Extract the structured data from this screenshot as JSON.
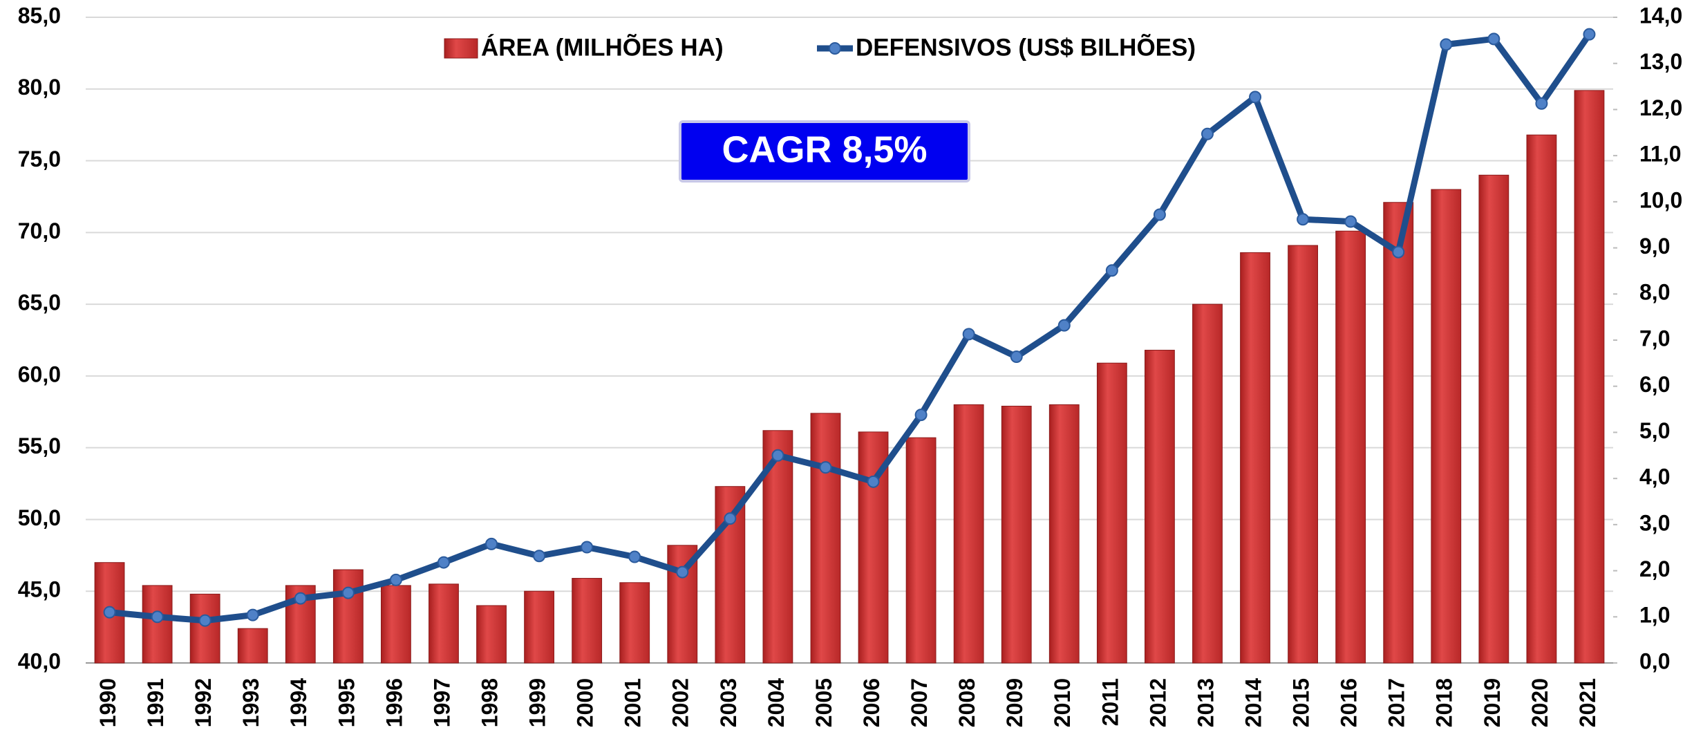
{
  "chart_data": {
    "type": "bar-line",
    "categories": [
      "1990",
      "1991",
      "1992",
      "1993",
      "1994",
      "1995",
      "1996",
      "1997",
      "1998",
      "1999",
      "2000",
      "2001",
      "2002",
      "2003",
      "2004",
      "2005",
      "2006",
      "2007",
      "2008",
      "2009",
      "2010",
      "2011",
      "2012",
      "2013",
      "2014",
      "2015",
      "2016",
      "2017",
      "2018",
      "2019",
      "2020",
      "2021"
    ],
    "series": [
      {
        "name": "ÁREA (MILHÕES HA)",
        "type": "bar",
        "color": "#d63a3a",
        "axis": "y",
        "values": [
          47.0,
          45.4,
          44.8,
          42.4,
          45.4,
          46.5,
          45.4,
          45.5,
          44.0,
          45.0,
          45.9,
          45.6,
          48.2,
          52.3,
          56.2,
          57.4,
          56.1,
          55.7,
          58.0,
          57.9,
          58.0,
          60.9,
          61.8,
          65.0,
          68.6,
          69.1,
          70.1,
          72.1,
          73.0,
          74.0,
          76.8,
          79.9
        ]
      },
      {
        "name": "DEFENSIVOS (US$ BILHÕES)",
        "type": "line",
        "color": "#1f4e8c",
        "axis": "y2",
        "values": [
          1.1,
          1.0,
          0.92,
          1.04,
          1.4,
          1.52,
          1.8,
          2.18,
          2.58,
          2.32,
          2.51,
          2.3,
          1.97,
          3.13,
          4.5,
          4.24,
          3.93,
          5.38,
          7.13,
          6.64,
          7.32,
          8.51,
          9.72,
          11.47,
          12.27,
          9.62,
          9.57,
          8.91,
          13.41,
          13.53,
          12.13,
          13.63
        ]
      }
    ],
    "annotation": "CAGR 8,5%",
    "ylim": [
      40,
      85
    ],
    "yticks": [
      {
        "value": 40,
        "label": "40,0"
      },
      {
        "value": 45,
        "label": "45,0"
      },
      {
        "value": 50,
        "label": "50,0"
      },
      {
        "value": 55,
        "label": "55,0"
      },
      {
        "value": 60,
        "label": "60,0"
      },
      {
        "value": 65,
        "label": "65,0"
      },
      {
        "value": 70,
        "label": "70,0"
      },
      {
        "value": 75,
        "label": "75,0"
      },
      {
        "value": 80,
        "label": "80,0"
      },
      {
        "value": 85,
        "label": "85,0"
      }
    ],
    "y2lim": [
      0,
      14
    ],
    "y2ticks": [
      {
        "value": 0,
        "label": "0,0"
      },
      {
        "value": 1,
        "label": "1,0"
      },
      {
        "value": 2,
        "label": "2,0"
      },
      {
        "value": 3,
        "label": "3,0"
      },
      {
        "value": 4,
        "label": "4,0"
      },
      {
        "value": 5,
        "label": "5,0"
      },
      {
        "value": 6,
        "label": "6,0"
      },
      {
        "value": 7,
        "label": "7,0"
      },
      {
        "value": 8,
        "label": "8,0"
      },
      {
        "value": 9,
        "label": "9,0"
      },
      {
        "value": 10,
        "label": "10,0"
      },
      {
        "value": 11,
        "label": "11,0"
      },
      {
        "value": 12,
        "label": "12,0"
      },
      {
        "value": 13,
        "label": "13,0"
      },
      {
        "value": 14,
        "label": "14,0"
      }
    ],
    "grid": true
  }
}
